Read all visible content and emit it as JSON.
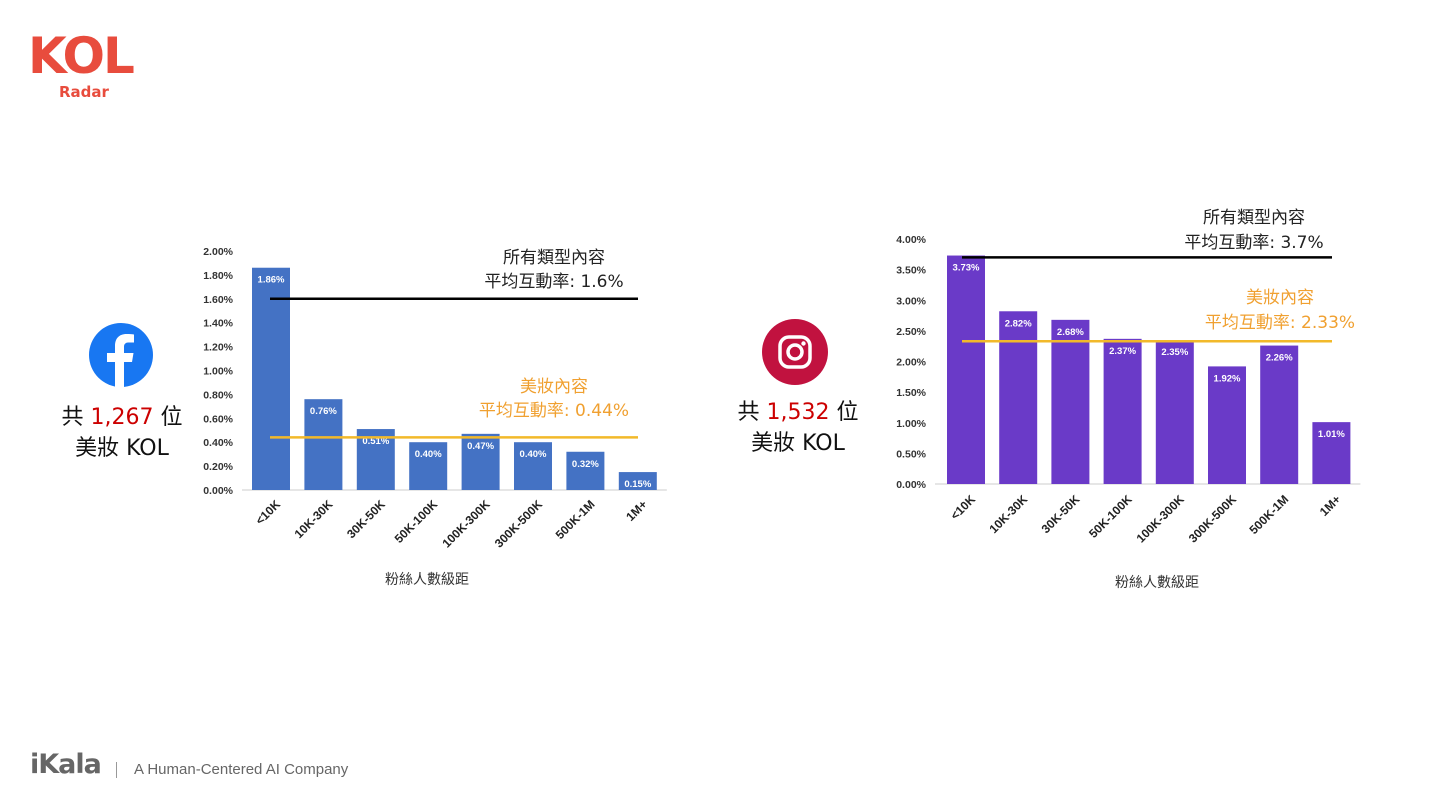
{
  "logo": {
    "main": "KOL",
    "sub": "Radar"
  },
  "facebook": {
    "icon": "facebook-icon",
    "count_prefix": "共",
    "count_number": "1,267",
    "count_suffix": "位",
    "count_line2": "美妝 KOL"
  },
  "instagram": {
    "icon": "instagram-icon",
    "count_prefix": "共",
    "count_number": "1,532",
    "count_suffix": "位",
    "count_line2": "美妝 KOL"
  },
  "footer": {
    "brand": "iKala",
    "tagline": "A Human-Centered AI Company"
  },
  "colors": {
    "facebook_bar": "#4472c4",
    "instagram_bar": "#6a3ac8",
    "all_avg_line": "#000000",
    "beauty_avg_line": "#f2b92a",
    "beauty_text": "#f0a030",
    "count_number": "#cc0000"
  },
  "chart_data": [
    {
      "type": "bar",
      "platform": "Facebook",
      "categories": [
        "<10K",
        "10K-30K",
        "30K-50K",
        "50K-100K",
        "100K-300K",
        "300K-500K",
        "500K-1M",
        "1M+"
      ],
      "values": [
        1.86,
        0.76,
        0.51,
        0.4,
        0.47,
        0.4,
        0.32,
        0.15
      ],
      "data_labels": [
        "1.86%",
        "0.76%",
        "0.51%",
        "0.40%",
        "0.47%",
        "0.40%",
        "0.32%",
        "0.15%"
      ],
      "xlabel": "粉絲人數級距",
      "ylabel": "",
      "ylim": [
        0,
        2.0
      ],
      "ytick_labels": [
        "0.00%",
        "0.20%",
        "0.40%",
        "0.60%",
        "0.80%",
        "1.00%",
        "1.20%",
        "1.40%",
        "1.60%",
        "1.80%",
        "2.00%"
      ],
      "reference_lines": [
        {
          "value": 1.6,
          "label_line1": "所有類型內容",
          "label_line2": "平均互動率: 1.6%",
          "color": "#000000"
        },
        {
          "value": 0.44,
          "label_line1": "美妝內容",
          "label_line2": "平均互動率: 0.44%",
          "color": "#f2b92a"
        }
      ],
      "grid": false
    },
    {
      "type": "bar",
      "platform": "Instagram",
      "categories": [
        "<10K",
        "10K-30K",
        "30K-50K",
        "50K-100K",
        "100K-300K",
        "300K-500K",
        "500K-1M",
        "1M+"
      ],
      "values": [
        3.73,
        2.82,
        2.68,
        2.37,
        2.35,
        1.92,
        2.26,
        1.01
      ],
      "data_labels": [
        "3.73%",
        "2.82%",
        "2.68%",
        "2.37%",
        "2.35%",
        "1.92%",
        "2.26%",
        "1.01%"
      ],
      "xlabel": "粉絲人數級距",
      "ylabel": "",
      "ylim": [
        0,
        4.0
      ],
      "ytick_labels": [
        "0.00%",
        "0.50%",
        "1.00%",
        "1.50%",
        "2.00%",
        "2.50%",
        "3.00%",
        "3.50%",
        "4.00%"
      ],
      "reference_lines": [
        {
          "value": 3.7,
          "label_line1": "所有類型內容",
          "label_line2": "平均互動率: 3.7%",
          "color": "#000000"
        },
        {
          "value": 2.33,
          "label_line1": "美妝內容",
          "label_line2": "平均互動率: 2.33%",
          "color": "#f2b92a"
        }
      ],
      "grid": false
    }
  ]
}
